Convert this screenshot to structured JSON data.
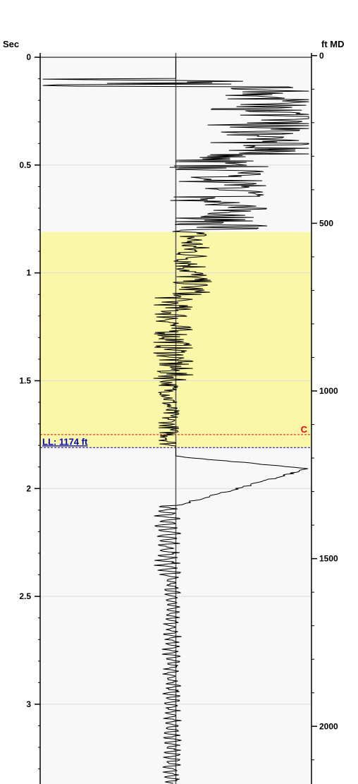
{
  "chart_data": {
    "type": "line",
    "left_axis": {
      "title": "Sec",
      "range": [
        -0.02,
        3.37
      ],
      "major_ticks": [
        0,
        0.5,
        1,
        1.5,
        2,
        2.5,
        3
      ],
      "major_tick_labels": [
        "0",
        "0.5",
        "1",
        "1.5",
        "2",
        "2.5",
        "3"
      ],
      "minor_step": 0.1
    },
    "right_axis": {
      "title": "ft MD",
      "range": [
        -8,
        2172
      ],
      "major_ticks": [
        0,
        500,
        1000,
        1500,
        2000
      ],
      "major_tick_labels": [
        "0",
        "500",
        "1000",
        "1500",
        "2000"
      ],
      "minor_step": 100
    },
    "grid": true,
    "highlight_band": {
      "from_sec": 0.81,
      "to_sec": 1.81,
      "color": "#fbf7a8"
    },
    "markers": [
      {
        "label": "C",
        "sec": 1.75,
        "color": "#ff0000",
        "style": "dashed"
      },
      {
        "label": "LL: 1174 ft",
        "sec": 1.81,
        "color": "#0000cc",
        "style": "dashed"
      }
    ],
    "trace": {
      "center_value": 0,
      "amplitude_range": [
        -1,
        1
      ],
      "segments": [
        {
          "from_sec": 0.0,
          "to_sec": 0.09,
          "mean": 0.0,
          "amplitude": 0.01,
          "style": "flat"
        },
        {
          "from_sec": 0.1,
          "to_sec": 0.14,
          "mean": 0.0,
          "amplitude": 1.0,
          "style": "spikes"
        },
        {
          "from_sec": 0.14,
          "to_sec": 0.45,
          "mean": 0.8,
          "amplitude": 0.28,
          "style": "spikes"
        },
        {
          "from_sec": 0.45,
          "to_sec": 0.8,
          "mean": 0.45,
          "amplitude": 0.25,
          "style": "spikes"
        },
        {
          "from_sec": 0.8,
          "to_sec": 1.1,
          "mean": 0.12,
          "amplitude": 0.15,
          "style": "noise"
        },
        {
          "from_sec": 1.1,
          "to_sec": 1.5,
          "mean": -0.02,
          "amplitude": 0.15,
          "style": "noise"
        },
        {
          "from_sec": 1.5,
          "to_sec": 1.8,
          "mean": -0.05,
          "amplitude": 0.08,
          "style": "noise"
        },
        {
          "from_sec": 1.85,
          "to_sec": 2.08,
          "mean": 0.0,
          "amplitude": 1.0,
          "style": "pulse"
        },
        {
          "from_sec": 2.08,
          "to_sec": 2.4,
          "mean": -0.06,
          "amplitude": 0.07,
          "style": "wiggle"
        },
        {
          "from_sec": 2.4,
          "to_sec": 3.37,
          "mean": -0.03,
          "amplitude": 0.05,
          "style": "wiggle"
        }
      ]
    },
    "colors": {
      "trace": "#000000",
      "plot_bg": "#f8f8f8",
      "grid": "#dcdcdc",
      "center_line": "#555555"
    }
  }
}
